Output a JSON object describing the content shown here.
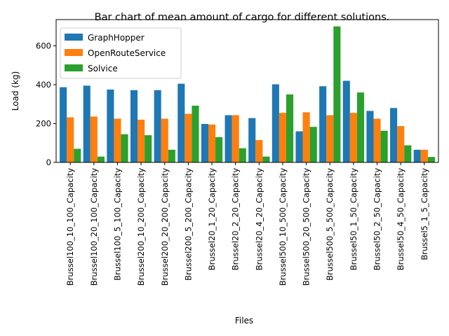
{
  "chart_data": {
    "type": "bar",
    "title": "Bar chart of mean amount of cargo for different solutions.",
    "xlabel": "Files",
    "ylabel": "Load (kg)",
    "ylim": [
      0,
      735
    ],
    "yticks": [
      0,
      200,
      400,
      600
    ],
    "legend_position": "top-left",
    "categories": [
      "Brussel100_10_100_Capacity",
      "Brussel100_20_100_Capacity",
      "Brussel100_5_100_Capacity",
      "Brussel200_10_200_Capacity",
      "Brussel200_20_200_Capacity",
      "Brussel200_5_200_Capacity",
      "Brussel20_1_20_Capacity",
      "Brussel20_2_20_Capacity",
      "Brussel20_4_20_Capacity",
      "Brussel500_10_500_Capacity",
      "Brussel500_20_500_Capacity",
      "Brussel500_5_500_Capacity",
      "Brussel50_1_50_Capacity",
      "Brussel50_2_50_Capacity",
      "Brussel50_4_50_Capacity",
      "Brussel5_1_5_Capacity"
    ],
    "series": [
      {
        "name": "GraphHopper",
        "color": "#1f77b4",
        "values": [
          387,
          395,
          375,
          372,
          372,
          405,
          198,
          243,
          228,
          402,
          160,
          392,
          420,
          265,
          280,
          65
        ]
      },
      {
        "name": "OpenRouteService",
        "color": "#ff7f0e",
        "values": [
          232,
          236,
          225,
          220,
          225,
          250,
          195,
          243,
          115,
          255,
          258,
          243,
          255,
          225,
          187,
          65
        ]
      },
      {
        "name": "Solvice",
        "color": "#2ca02c",
        "values": [
          70,
          30,
          145,
          140,
          65,
          292,
          130,
          73,
          30,
          350,
          183,
          700,
          360,
          163,
          88,
          28
        ]
      }
    ]
  }
}
